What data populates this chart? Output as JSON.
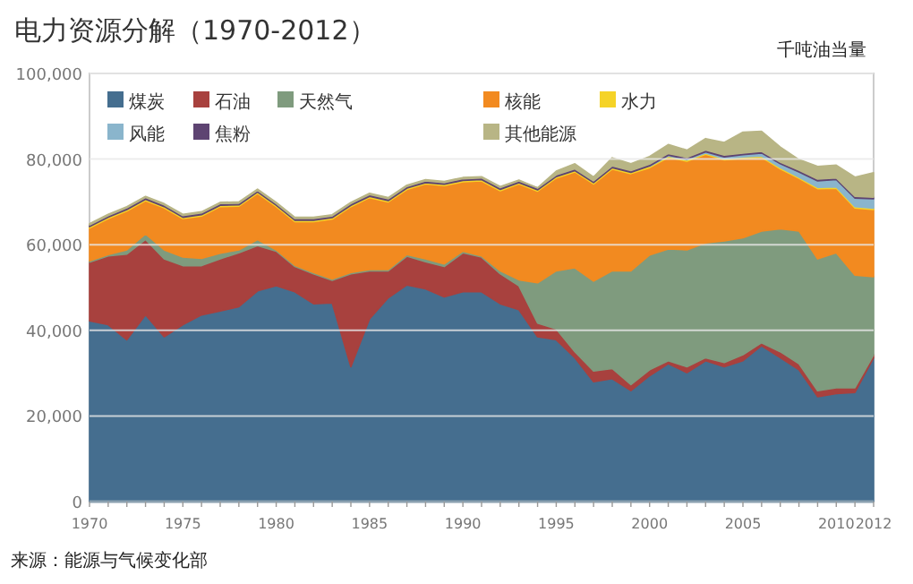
{
  "chart_data": {
    "type": "area",
    "stacked": true,
    "title": "电力资源分解（1970-2012）",
    "ylabel": "千吨油当量",
    "annotations": [
      "来源：能源与气候变化部"
    ],
    "x": [
      1970,
      1971,
      1972,
      1973,
      1974,
      1975,
      1976,
      1977,
      1978,
      1979,
      1980,
      1981,
      1982,
      1983,
      1984,
      1985,
      1986,
      1987,
      1988,
      1989,
      1990,
      1991,
      1992,
      1993,
      1994,
      1995,
      1996,
      1997,
      1998,
      1999,
      2000,
      2001,
      2002,
      2003,
      2004,
      2005,
      2006,
      2007,
      2008,
      2009,
      2010,
      2011,
      2012
    ],
    "xlim": [
      1970,
      2012
    ],
    "xticks": [
      1970,
      1975,
      1980,
      1985,
      1990,
      1995,
      2000,
      2005,
      2010,
      2012
    ],
    "ylim": [
      0,
      100000
    ],
    "yticks": [
      {
        "value": 0,
        "label": "0"
      },
      {
        "value": 20000,
        "label": "20,000"
      },
      {
        "value": 40000,
        "label": "40,000"
      },
      {
        "value": 60000,
        "label": "60,000"
      },
      {
        "value": 80000,
        "label": "80,000"
      },
      {
        "value": 100000,
        "label": "100,000"
      }
    ],
    "grid": "y",
    "legend": "top left",
    "series": [
      {
        "name": "煤炭",
        "color": "#456e8f",
        "values": [
          42200,
          41300,
          37800,
          43600,
          38500,
          41300,
          43600,
          44500,
          45500,
          49200,
          50400,
          49000,
          46200,
          46400,
          31500,
          42700,
          47600,
          50600,
          49700,
          47800,
          49000,
          49000,
          46200,
          44800,
          38500,
          37800,
          33600,
          28000,
          28700,
          25900,
          29400,
          32200,
          30100,
          32900,
          31500,
          32900,
          36400,
          33600,
          30800,
          24500,
          25200,
          25500,
          33600
        ]
      },
      {
        "name": "石油",
        "color": "#a8413e",
        "values": [
          13700,
          16100,
          20000,
          17600,
          18200,
          13800,
          11500,
          12200,
          12600,
          10600,
          8100,
          5900,
          7000,
          5300,
          21700,
          11200,
          6300,
          6700,
          6300,
          7100,
          9100,
          8100,
          7000,
          5600,
          3200,
          2500,
          1400,
          2500,
          2400,
          1400,
          1400,
          700,
          1400,
          700,
          1000,
          1400,
          700,
          1400,
          1400,
          1400,
          1400,
          1100,
          700
        ]
      },
      {
        "name": "天然气",
        "color": "#7f9b7e",
        "values": [
          300,
          300,
          1000,
          1300,
          2100,
          2000,
          1700,
          1300,
          700,
          1400,
          300,
          300,
          300,
          300,
          300,
          300,
          300,
          400,
          700,
          600,
          400,
          300,
          700,
          1400,
          9400,
          13600,
          19600,
          21000,
          22800,
          26600,
          26800,
          26100,
          27300,
          26800,
          28400,
          27300,
          26100,
          28700,
          31000,
          30800,
          31500,
          26300,
          18200
        ]
      },
      {
        "name": "核能",
        "color": "#f28a20",
        "values": [
          7700,
          8400,
          9100,
          7800,
          9800,
          9000,
          9900,
          10900,
          10200,
          10800,
          10100,
          10200,
          11900,
          14000,
          15400,
          16800,
          15800,
          15200,
          17500,
          18300,
          16200,
          17500,
          18700,
          22400,
          21400,
          21700,
          22400,
          22700,
          23800,
          22700,
          20400,
          21400,
          20700,
          20700,
          18900,
          18600,
          17200,
          14000,
          12300,
          16400,
          15100,
          15700,
          15700
        ]
      },
      {
        "name": "水力",
        "color": "#f5d327",
        "values": [
          300,
          300,
          300,
          300,
          300,
          300,
          300,
          300,
          300,
          300,
          300,
          300,
          300,
          300,
          300,
          300,
          300,
          300,
          300,
          300,
          300,
          300,
          300,
          300,
          300,
          300,
          300,
          300,
          300,
          300,
          300,
          300,
          300,
          300,
          300,
          300,
          300,
          300,
          300,
          300,
          300,
          300,
          300
        ]
      },
      {
        "name": "风能",
        "color": "#8ab5cc",
        "values": [
          null,
          null,
          null,
          null,
          null,
          null,
          null,
          null,
          null,
          null,
          null,
          null,
          null,
          null,
          null,
          null,
          null,
          null,
          null,
          null,
          null,
          null,
          null,
          null,
          null,
          null,
          null,
          null,
          null,
          null,
          100,
          200,
          200,
          300,
          400,
          500,
          700,
          900,
          1200,
          1500,
          1700,
          2000,
          2200
        ]
      },
      {
        "name": "焦粉",
        "color": "#5e4472",
        "values": [
          400,
          400,
          400,
          400,
          400,
          400,
          400,
          400,
          400,
          400,
          400,
          400,
          400,
          400,
          400,
          400,
          400,
          400,
          400,
          400,
          400,
          400,
          400,
          400,
          400,
          400,
          400,
          400,
          400,
          400,
          400,
          400,
          400,
          400,
          400,
          400,
          400,
          400,
          400,
          400,
          400,
          400,
          400
        ]
      },
      {
        "name": "其他能源",
        "color": "#b8b585",
        "values": [
          300,
          300,
          300,
          300,
          300,
          300,
          300,
          300,
          300,
          300,
          300,
          300,
          300,
          300,
          300,
          300,
          300,
          300,
          300,
          300,
          300,
          300,
          300,
          200,
          100,
          900,
          1200,
          900,
          1900,
          1600,
          1800,
          2100,
          1700,
          2700,
          3000,
          4900,
          4700,
          3500,
          2500,
          3000,
          3000,
          4500,
          5700
        ]
      }
    ]
  }
}
